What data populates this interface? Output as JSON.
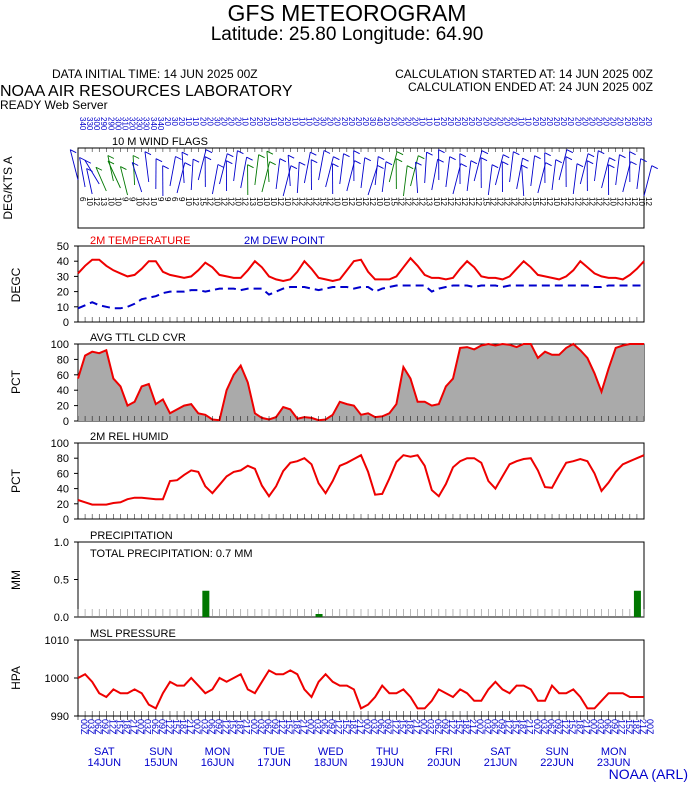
{
  "header": {
    "title": "GFS METEOROGRAM",
    "latlon": "Latitude: 25.80 Longitude:  64.90",
    "data_initial_time": "DATA INITIAL TIME: 14 JUN 2025 00Z",
    "calc_started": "CALCULATION STARTED AT: 14 JUN 2025 00Z",
    "calc_ended": "CALCULATION ENDED AT: 24 JUN 2025 00Z",
    "lab": "NOAA AIR RESOURCES LABORATORY",
    "server": "READY Web Server"
  },
  "credit": "NOAA (ARL)",
  "colors": {
    "red": "#ee0000",
    "blue": "#0000cc",
    "green": "#007700",
    "gray": "#aaaaaa"
  },
  "days": [
    {
      "dow": "SAT",
      "date": "14JUN"
    },
    {
      "dow": "SUN",
      "date": "15JUN"
    },
    {
      "dow": "MON",
      "date": "16JUN"
    },
    {
      "dow": "TUE",
      "date": "17JUN"
    },
    {
      "dow": "WED",
      "date": "18JUN"
    },
    {
      "dow": "THU",
      "date": "19JUN"
    },
    {
      "dow": "FRI",
      "date": "20JUN"
    },
    {
      "dow": "SAT",
      "date": "21JUN"
    },
    {
      "dow": "SUN",
      "date": "22JUN"
    },
    {
      "dow": "MON",
      "date": "23JUN"
    }
  ],
  "hour_labels": [
    "00Z",
    "03Z",
    "06Z",
    "09Z",
    "12Z",
    "15Z",
    "18Z",
    "21Z"
  ],
  "chart_data": [
    {
      "type": "wind-barbs",
      "title": "10 M  WIND FLAGS",
      "ylabel": "DEG/KTS  A",
      "x_hours": [
        0,
        240
      ],
      "directions": [
        340,
        330,
        300,
        290,
        290,
        300,
        310,
        320,
        330,
        330,
        340,
        340,
        20,
        30,
        20,
        10,
        10,
        20,
        20,
        30,
        20,
        20,
        20,
        10,
        20,
        20,
        20,
        10,
        20,
        20,
        10,
        10,
        10,
        20,
        30,
        20,
        20,
        20,
        20,
        20,
        20,
        30,
        40,
        20,
        20,
        20,
        20,
        20,
        10,
        10,
        10,
        20,
        20,
        20,
        20,
        20,
        20,
        20,
        20,
        20,
        20,
        20,
        10,
        10,
        20,
        20,
        20,
        20,
        20,
        20,
        20,
        20,
        20,
        20,
        20,
        20,
        20,
        20,
        20,
        20,
        20
      ],
      "speeds": [
        6,
        10,
        12,
        13,
        10,
        10,
        9,
        9,
        10,
        12,
        10,
        9,
        9,
        6,
        9,
        10,
        12,
        15,
        12,
        10,
        12,
        12,
        10,
        12,
        13,
        10,
        10,
        10,
        12,
        10,
        12,
        12,
        12,
        12,
        15,
        12,
        10,
        10,
        12,
        10,
        12,
        12,
        10,
        10,
        15,
        12,
        12,
        12,
        12,
        13,
        10,
        12,
        12,
        12,
        12,
        12,
        12,
        15,
        12,
        12,
        12,
        12,
        12,
        12,
        15,
        12,
        12,
        10,
        12,
        12,
        12,
        12,
        12,
        12,
        12,
        10,
        12,
        12,
        12,
        10,
        12
      ]
    },
    {
      "type": "line",
      "title": "",
      "ylabel": "DEGC",
      "ylim": [
        0,
        50
      ],
      "yticks": [
        0,
        10,
        20,
        30,
        40,
        50
      ],
      "x_hours_range": [
        0,
        240
      ],
      "series": [
        {
          "name": "2M TEMPERATURE",
          "color": "#ee0000",
          "dash": false,
          "x": [
            0,
            3,
            6,
            9,
            12,
            15,
            18,
            21,
            24,
            27,
            30,
            33,
            36,
            39,
            42,
            45,
            48,
            51,
            54,
            57,
            60,
            63,
            66,
            69,
            72,
            75,
            78,
            81,
            84,
            87,
            90,
            93,
            96,
            99,
            102,
            105,
            108,
            111,
            114,
            117,
            120,
            123,
            126,
            129,
            132,
            135,
            138,
            141,
            144,
            147,
            150,
            153,
            156,
            159,
            162,
            165,
            168,
            171,
            174,
            177,
            180,
            183,
            186,
            189,
            192,
            195,
            198,
            201,
            204,
            207,
            210,
            213,
            216,
            219,
            222,
            225,
            228,
            231,
            234,
            237,
            240
          ],
          "values": [
            32,
            37,
            41,
            41,
            37,
            34,
            32,
            30,
            31,
            35,
            40,
            40,
            33,
            31,
            30,
            29,
            30,
            34,
            39,
            36,
            31,
            30,
            29,
            29,
            34,
            40,
            36,
            30,
            28,
            27,
            28,
            33,
            40,
            35,
            29,
            28,
            27,
            28,
            34,
            40,
            41,
            33,
            28,
            28,
            28,
            30,
            36,
            42,
            37,
            31,
            29,
            29,
            28,
            29,
            35,
            40,
            36,
            30,
            29,
            29,
            28,
            30,
            35,
            40,
            36,
            31,
            30,
            29,
            28,
            30,
            34,
            40,
            36,
            32,
            30,
            29,
            29,
            28,
            31,
            35,
            40
          ]
        },
        {
          "name": "2M  DEW POINT",
          "color": "#0000cc",
          "dash": true,
          "x": [
            0,
            3,
            6,
            9,
            12,
            15,
            18,
            21,
            24,
            27,
            30,
            33,
            36,
            39,
            42,
            45,
            48,
            51,
            54,
            57,
            60,
            63,
            66,
            69,
            72,
            75,
            78,
            81,
            84,
            87,
            90,
            93,
            96,
            99,
            102,
            105,
            108,
            111,
            114,
            117,
            120,
            123,
            126,
            129,
            132,
            135,
            138,
            141,
            144,
            147,
            150,
            153,
            156,
            159,
            162,
            165,
            168,
            171,
            174,
            177,
            180,
            183,
            186,
            189,
            192,
            195,
            198,
            201,
            204,
            207,
            210,
            213,
            216,
            219,
            222,
            225,
            228,
            231,
            234,
            237,
            240
          ],
          "values": [
            9,
            11,
            13,
            11,
            10,
            9,
            9,
            10,
            12,
            15,
            16,
            17,
            19,
            20,
            20,
            20,
            21,
            21,
            20,
            21,
            22,
            22,
            22,
            21,
            22,
            22,
            22,
            18,
            20,
            22,
            23,
            23,
            23,
            22,
            21,
            22,
            23,
            23,
            23,
            22,
            23,
            23,
            20,
            22,
            23,
            24,
            24,
            24,
            24,
            24,
            20,
            22,
            23,
            24,
            24,
            24,
            23,
            24,
            24,
            24,
            23,
            24,
            24,
            24,
            24,
            24,
            24,
            24,
            24,
            24,
            24,
            24,
            24,
            23,
            23,
            24,
            24,
            24,
            24,
            24,
            24
          ]
        }
      ]
    },
    {
      "type": "area",
      "title": "AVG TTL CLD CVR",
      "ylabel": "PCT",
      "ylim": [
        0,
        100
      ],
      "yticks": [
        0,
        20,
        40,
        60,
        80,
        100
      ],
      "x": [
        0,
        3,
        6,
        9,
        12,
        15,
        18,
        21,
        24,
        27,
        30,
        33,
        36,
        39,
        42,
        45,
        48,
        51,
        54,
        57,
        60,
        63,
        66,
        69,
        72,
        75,
        78,
        81,
        84,
        87,
        90,
        93,
        96,
        99,
        102,
        105,
        108,
        111,
        114,
        117,
        120,
        123,
        126,
        129,
        132,
        135,
        138,
        141,
        144,
        147,
        150,
        153,
        156,
        159,
        162,
        165,
        168,
        171,
        174,
        177,
        180,
        183,
        186,
        189,
        192,
        195,
        198,
        201,
        204,
        207,
        210,
        213,
        216,
        219,
        222,
        225,
        228,
        231,
        234,
        237,
        240
      ],
      "values": [
        55,
        85,
        90,
        88,
        92,
        55,
        45,
        20,
        25,
        45,
        48,
        22,
        28,
        10,
        15,
        20,
        22,
        10,
        8,
        2,
        1,
        40,
        60,
        72,
        50,
        10,
        4,
        2,
        5,
        18,
        15,
        3,
        5,
        4,
        1,
        2,
        8,
        25,
        22,
        20,
        8,
        10,
        5,
        6,
        10,
        22,
        70,
        55,
        25,
        25,
        20,
        22,
        45,
        55,
        95,
        96,
        93,
        98,
        100,
        98,
        100,
        99,
        96,
        100,
        100,
        82,
        90,
        86,
        86,
        95,
        100,
        92,
        82,
        62,
        38,
        68,
        95,
        98,
        100,
        100,
        100
      ],
      "color": "#aaaaaa",
      "line_color": "#ee0000"
    },
    {
      "type": "line",
      "title": "2M REL HUMID",
      "ylabel": "PCT",
      "ylim": [
        0,
        100
      ],
      "yticks": [
        0,
        20,
        40,
        60,
        80,
        100
      ],
      "x": [
        0,
        3,
        6,
        9,
        12,
        15,
        18,
        21,
        24,
        27,
        30,
        33,
        36,
        39,
        42,
        45,
        48,
        51,
        54,
        57,
        60,
        63,
        66,
        69,
        72,
        75,
        78,
        81,
        84,
        87,
        90,
        93,
        96,
        99,
        102,
        105,
        108,
        111,
        114,
        117,
        120,
        123,
        126,
        129,
        132,
        135,
        138,
        141,
        144,
        147,
        150,
        153,
        156,
        159,
        162,
        165,
        168,
        171,
        174,
        177,
        180,
        183,
        186,
        189,
        192,
        195,
        198,
        201,
        204,
        207,
        210,
        213,
        216,
        219,
        222,
        225,
        228,
        231,
        234,
        237,
        240
      ],
      "values": [
        25,
        22,
        19,
        19,
        19,
        21,
        22,
        26,
        28,
        28,
        27,
        26,
        26,
        50,
        51,
        58,
        64,
        62,
        43,
        34,
        45,
        56,
        62,
        64,
        70,
        66,
        44,
        30,
        43,
        63,
        74,
        76,
        80,
        72,
        47,
        34,
        50,
        70,
        74,
        79,
        84,
        62,
        32,
        33,
        53,
        75,
        84,
        82,
        84,
        70,
        38,
        30,
        46,
        68,
        76,
        80,
        80,
        74,
        50,
        40,
        56,
        72,
        76,
        79,
        80,
        64,
        42,
        41,
        58,
        74,
        76,
        79,
        76,
        60,
        37,
        48,
        62,
        72,
        76,
        80,
        84
      ]
    },
    {
      "type": "bar",
      "title": "PRECIPITATION",
      "annotation": "TOTAL PRECIPITATION:   0.7 MM",
      "ylabel": "MM",
      "ylim": [
        0,
        1.0
      ],
      "yticks": [
        0.0,
        0.5,
        1.0
      ],
      "bars": [
        {
          "x": 54,
          "value": 0.35
        },
        {
          "x": 102,
          "value": 0.04
        },
        {
          "x": 237,
          "value": 0.35
        }
      ],
      "color": "#007700"
    },
    {
      "type": "line",
      "title": "MSL PRESSURE",
      "ylabel": "HPA",
      "ylim": [
        990,
        1010
      ],
      "yticks": [
        990,
        1000,
        1010
      ],
      "x": [
        0,
        3,
        6,
        9,
        12,
        15,
        18,
        21,
        24,
        27,
        30,
        33,
        36,
        39,
        42,
        45,
        48,
        51,
        54,
        57,
        60,
        63,
        66,
        69,
        72,
        75,
        78,
        81,
        84,
        87,
        90,
        93,
        96,
        99,
        102,
        105,
        108,
        111,
        114,
        117,
        120,
        123,
        126,
        129,
        132,
        135,
        138,
        141,
        144,
        147,
        150,
        153,
        156,
        159,
        162,
        165,
        168,
        171,
        174,
        177,
        180,
        183,
        186,
        189,
        192,
        195,
        198,
        201,
        204,
        207,
        210,
        213,
        216,
        219,
        222,
        225,
        228,
        231,
        234,
        237,
        240
      ],
      "values": [
        1000,
        1001,
        999,
        996,
        995,
        997,
        996,
        996,
        997,
        996,
        993,
        992,
        996,
        999,
        998,
        998,
        1000,
        998,
        996,
        997,
        1000,
        999,
        1000,
        1001,
        997,
        996,
        999,
        1002,
        1001,
        1001,
        1002,
        1001,
        997,
        995,
        999,
        1001,
        999,
        998,
        998,
        997,
        992,
        993,
        995,
        998,
        996,
        996,
        997,
        995,
        992,
        992,
        994,
        997,
        996,
        995,
        997,
        996,
        994,
        994,
        997,
        999,
        997,
        996,
        998,
        998,
        997,
        994,
        994,
        998,
        996,
        996,
        997,
        995,
        992,
        992,
        994,
        996,
        996,
        996,
        995,
        995,
        995
      ]
    }
  ]
}
